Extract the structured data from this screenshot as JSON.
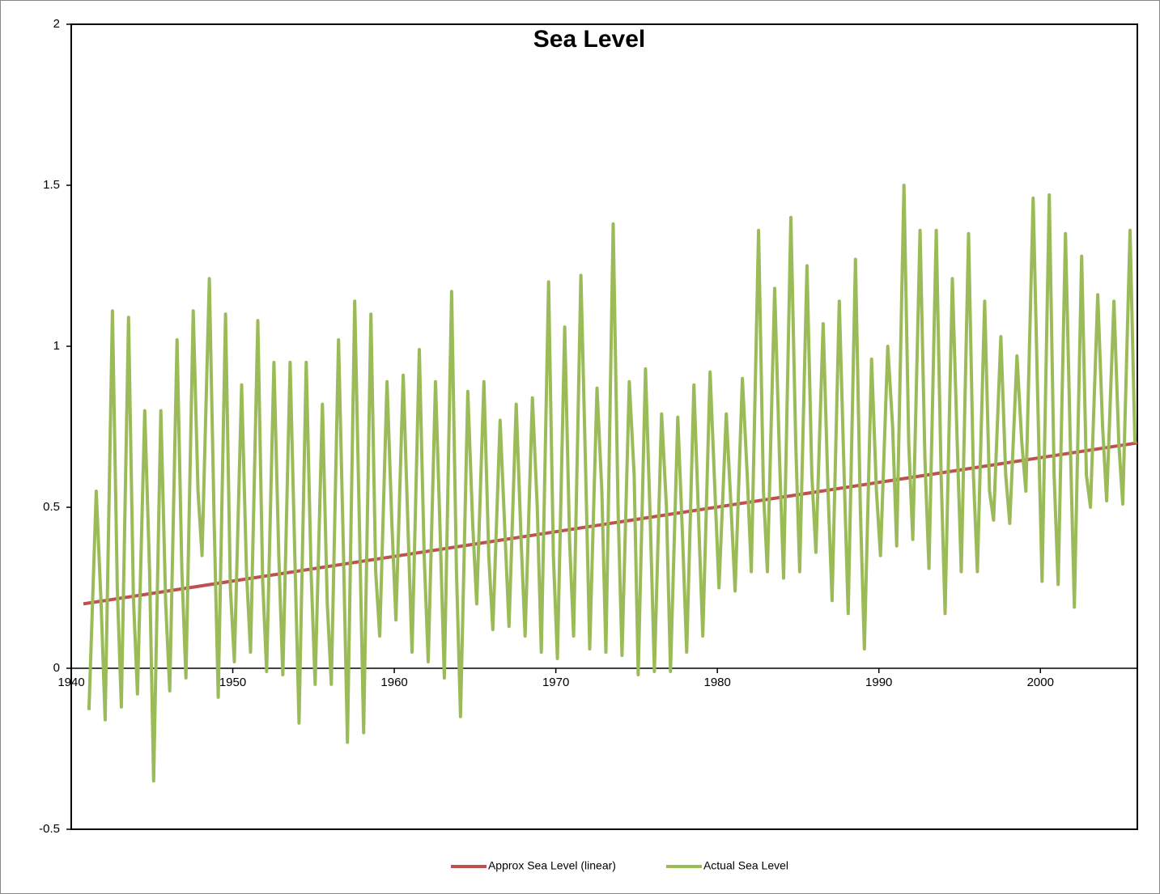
{
  "chart_data": {
    "type": "line",
    "title": "Sea Level",
    "xlim": [
      1940,
      2006
    ],
    "xticks": [
      1940,
      1950,
      1960,
      1970,
      1980,
      1990,
      2000
    ],
    "ylim": [
      -0.5,
      2
    ],
    "yticks": [
      -0.5,
      0,
      0.5,
      1,
      1.5,
      2
    ],
    "legend": "bottom",
    "series": [
      {
        "name": "Approx Sea Level (linear)",
        "color": "#c0504d",
        "x": [
          1940.75,
          2006
        ],
        "values": [
          0.2,
          0.7
        ]
      },
      {
        "name": "Actual Sea Level",
        "color": "#9bbb59",
        "x": [
          1941.1,
          1941.55,
          1941.85,
          1942.1,
          1942.55,
          1942.85,
          1943.1,
          1943.55,
          1943.85,
          1944.1,
          1944.55,
          1944.85,
          1945.1,
          1945.55,
          1945.85,
          1946.1,
          1946.55,
          1946.85,
          1947.1,
          1947.55,
          1947.85,
          1948.1,
          1948.55,
          1948.85,
          1949.1,
          1949.55,
          1949.85,
          1950.1,
          1950.55,
          1950.85,
          1951.1,
          1951.55,
          1951.85,
          1952.1,
          1952.55,
          1952.85,
          1953.1,
          1953.55,
          1953.85,
          1954.1,
          1954.55,
          1954.85,
          1955.1,
          1955.55,
          1955.85,
          1956.1,
          1956.55,
          1956.85,
          1957.1,
          1957.55,
          1957.85,
          1958.1,
          1958.55,
          1958.85,
          1959.1,
          1959.55,
          1959.85,
          1960.1,
          1960.55,
          1960.85,
          1961.1,
          1961.55,
          1961.85,
          1962.1,
          1962.55,
          1962.85,
          1963.1,
          1963.55,
          1963.85,
          1964.1,
          1964.55,
          1964.85,
          1965.1,
          1965.55,
          1965.85,
          1966.1,
          1966.55,
          1966.85,
          1967.1,
          1967.55,
          1967.85,
          1968.1,
          1968.55,
          1968.85,
          1969.1,
          1969.55,
          1969.85,
          1970.1,
          1970.55,
          1970.85,
          1971.1,
          1971.55,
          1971.85,
          1972.1,
          1972.55,
          1972.85,
          1973.1,
          1973.55,
          1973.85,
          1974.1,
          1974.55,
          1974.85,
          1975.1,
          1975.55,
          1975.85,
          1976.1,
          1976.55,
          1976.85,
          1977.1,
          1977.55,
          1977.85,
          1978.1,
          1978.55,
          1978.85,
          1979.1,
          1979.55,
          1979.85,
          1980.1,
          1980.55,
          1980.85,
          1981.1,
          1981.55,
          1981.85,
          1982.1,
          1982.55,
          1982.85,
          1983.1,
          1983.55,
          1983.85,
          1984.1,
          1984.55,
          1984.85,
          1985.1,
          1985.55,
          1985.85,
          1986.1,
          1986.55,
          1986.85,
          1987.1,
          1987.55,
          1987.85,
          1988.1,
          1988.55,
          1988.85,
          1989.1,
          1989.55,
          1989.85,
          1990.1,
          1990.55,
          1990.85,
          1991.1,
          1991.55,
          1991.85,
          1992.1,
          1992.55,
          1992.85,
          1993.1,
          1993.55,
          1993.85,
          1994.1,
          1994.55,
          1994.85,
          1995.1,
          1995.55,
          1995.85,
          1996.1,
          1996.55,
          1996.85,
          1997.1,
          1997.55,
          1997.85,
          1998.1,
          1998.55,
          1998.85,
          1999.1,
          1999.55,
          1999.85,
          2000.1,
          2000.55,
          2000.85,
          2001.1,
          2001.55,
          2001.85,
          2002.1,
          2002.55,
          2002.85,
          2003.1,
          2003.55,
          2003.85,
          2004.1,
          2004.55,
          2004.85,
          2005.1,
          2005.55,
          2005.85
        ],
        "values": [
          -0.13,
          0.55,
          0.2,
          -0.16,
          1.11,
          0.25,
          -0.12,
          1.09,
          0.22,
          -0.08,
          0.8,
          0.3,
          -0.35,
          0.8,
          0.2,
          -0.07,
          1.02,
          0.3,
          -0.03,
          1.11,
          0.55,
          0.35,
          1.21,
          0.45,
          -0.09,
          1.1,
          0.25,
          0.02,
          0.88,
          0.3,
          0.05,
          1.08,
          0.27,
          -0.01,
          0.95,
          0.35,
          -0.02,
          0.95,
          0.33,
          -0.17,
          0.95,
          0.3,
          -0.05,
          0.82,
          0.2,
          -0.05,
          1.02,
          0.37,
          -0.23,
          1.14,
          0.42,
          -0.2,
          1.1,
          0.3,
          0.1,
          0.89,
          0.45,
          0.15,
          0.91,
          0.43,
          0.05,
          0.99,
          0.35,
          0.02,
          0.89,
          0.4,
          -0.03,
          1.17,
          0.3,
          -0.15,
          0.86,
          0.45,
          0.2,
          0.89,
          0.35,
          0.12,
          0.77,
          0.42,
          0.13,
          0.82,
          0.4,
          0.1,
          0.84,
          0.5,
          0.05,
          1.2,
          0.35,
          0.03,
          1.06,
          0.4,
          0.1,
          1.22,
          0.6,
          0.06,
          0.87,
          0.55,
          0.05,
          1.38,
          0.5,
          0.04,
          0.89,
          0.6,
          -0.02,
          0.93,
          0.45,
          -0.01,
          0.79,
          0.5,
          -0.01,
          0.78,
          0.4,
          0.05,
          0.88,
          0.45,
          0.1,
          0.92,
          0.55,
          0.25,
          0.79,
          0.5,
          0.24,
          0.9,
          0.6,
          0.3,
          1.36,
          0.55,
          0.3,
          1.18,
          0.65,
          0.28,
          1.4,
          0.7,
          0.3,
          1.25,
          0.6,
          0.36,
          1.07,
          0.55,
          0.21,
          1.14,
          0.6,
          0.17,
          1.27,
          0.5,
          0.06,
          0.96,
          0.55,
          0.35,
          1.0,
          0.75,
          0.38,
          1.5,
          0.7,
          0.4,
          1.36,
          0.65,
          0.31,
          1.36,
          0.6,
          0.17,
          1.21,
          0.7,
          0.3,
          1.35,
          0.6,
          0.3,
          1.14,
          0.55,
          0.46,
          1.03,
          0.6,
          0.45,
          0.97,
          0.7,
          0.55,
          1.46,
          0.8,
          0.27,
          1.47,
          0.6,
          0.26,
          1.35,
          0.7,
          0.19,
          1.28,
          0.6,
          0.5,
          1.16,
          0.75,
          0.52,
          1.14,
          0.7,
          0.51,
          1.36,
          0.7
        ]
      }
    ]
  }
}
